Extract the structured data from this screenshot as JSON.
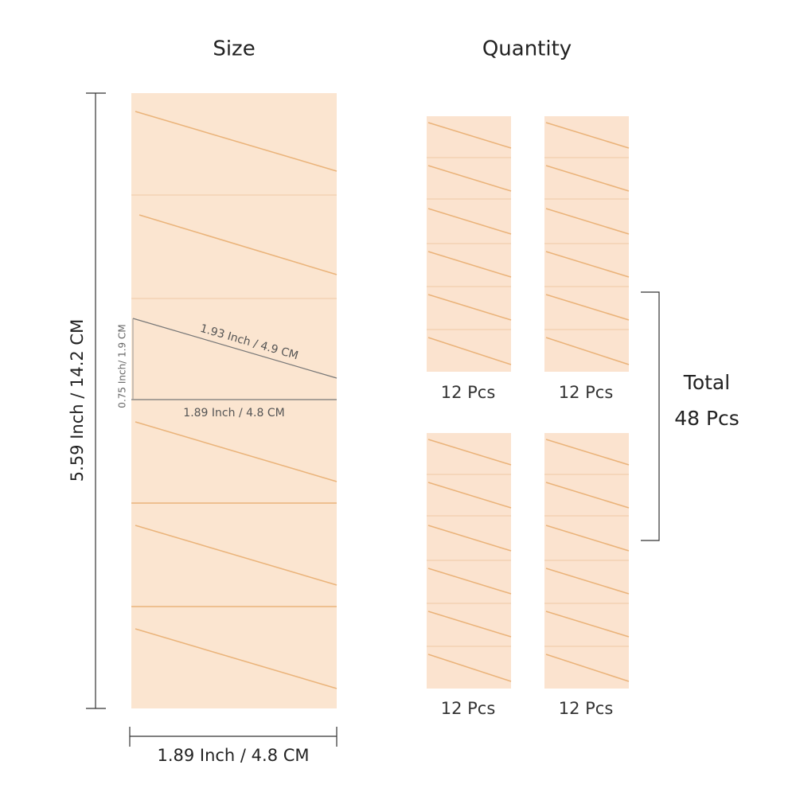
{
  "header": {
    "size_title": "Size",
    "quantity_title": "Quantity"
  },
  "dimensions": {
    "height": "5.59 Inch / 14.2 CM",
    "thickness": "0.75 Inch/ 1.9 CM",
    "diagonal": "1.93 Inch / 4.9 CM",
    "inner_width": "1.89 Inch / 4.8 CM",
    "width": "1.89 Inch / 4.8 CM"
  },
  "packs": [
    {
      "label": "12 Pcs"
    },
    {
      "label": "12 Pcs"
    },
    {
      "label": "12 Pcs"
    },
    {
      "label": "12 Pcs"
    }
  ],
  "total": {
    "label": "Total",
    "count": "48 Pcs"
  }
}
